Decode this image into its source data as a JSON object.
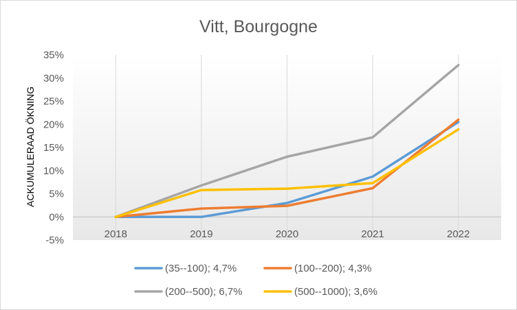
{
  "chart_data": {
    "type": "line",
    "title": "Vitt, Bourgogne",
    "xlabel": "",
    "ylabel": "ACKUMULERAAD ÖKNING",
    "categories": [
      "2018",
      "2019",
      "2020",
      "2021",
      "2022"
    ],
    "y_ticks": [
      "35%",
      "30%",
      "25%",
      "20%",
      "15%",
      "10%",
      "5%",
      "0%",
      "-5%"
    ],
    "ylim": [
      -5,
      35
    ],
    "y_unit": "%",
    "grid": "vertical",
    "legend_position": "bottom",
    "series": [
      {
        "name": "(35--100); 4,7%",
        "color": "#5B9BD5",
        "values": [
          0,
          0,
          3.0,
          8.7,
          20.5
        ]
      },
      {
        "name": "(100--200); 4,3%",
        "color": "#ED7D31",
        "values": [
          0,
          1.8,
          2.4,
          6.2,
          21.0
        ]
      },
      {
        "name": "(200--500); 6,7%",
        "color": "#A5A5A5",
        "values": [
          0,
          6.8,
          13.0,
          17.2,
          32.8
        ]
      },
      {
        "name": "(500--1000); 3,6%",
        "color": "#FFC000",
        "values": [
          0,
          5.8,
          6.1,
          7.3,
          18.9
        ]
      }
    ]
  }
}
